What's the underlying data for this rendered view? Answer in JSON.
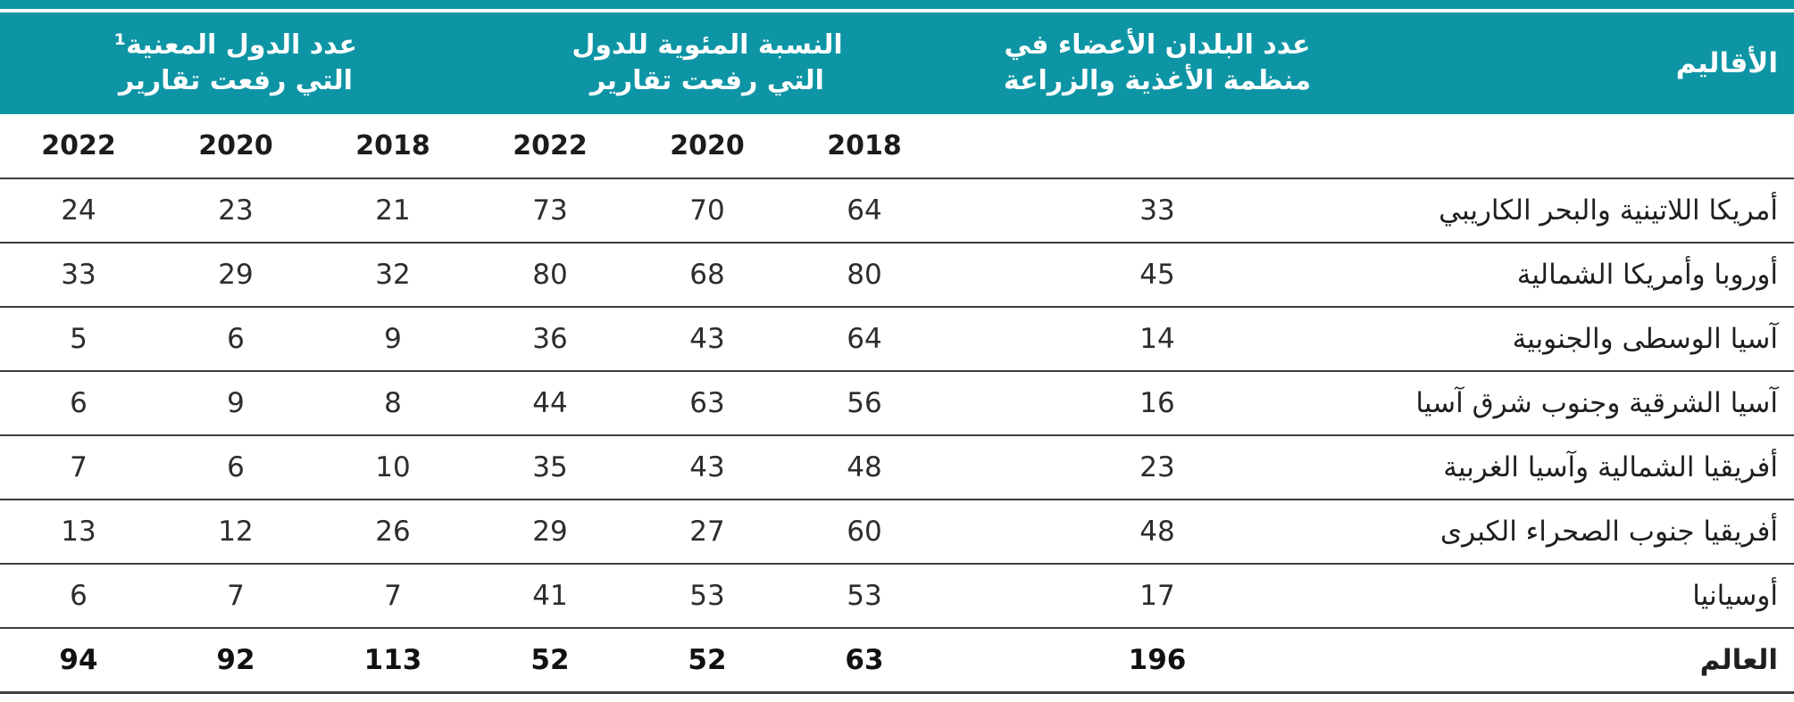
{
  "theme": {
    "teal": "#0e95a5",
    "separator_line": "#3d3d3d",
    "header_text": "#ffffff",
    "body_text": "#2d2d2d"
  },
  "chart_data": {
    "type": "table",
    "direction": "rtl",
    "headers": {
      "regions": "الأقاليم",
      "fao_members_line1": "عدد البلدان الأعضاء في",
      "fao_members_line2": "منظمة الأغذية والزراعة",
      "pct_reporting_line1": "النسبة المئوية للدول",
      "pct_reporting_line2": "التي رفعت تقارير",
      "num_reporting_line1": "عدد الدول المعنية¹",
      "num_reporting_line2": "التي رفعت تقارير"
    },
    "year_row": [
      "2018",
      "2020",
      "2022",
      "2018",
      "2020",
      "2022"
    ],
    "rows": [
      {
        "region": "أمريكا اللاتينية والبحر الكاريبي",
        "fao_members": "33",
        "pct_2018": "64",
        "pct_2020": "70",
        "pct_2022": "73",
        "rep_2018": "21",
        "rep_2020": "23",
        "rep_2022": "24"
      },
      {
        "region": "أوروبا وأمريكا الشمالية",
        "fao_members": "45",
        "pct_2018": "80",
        "pct_2020": "68",
        "pct_2022": "80",
        "rep_2018": "32",
        "rep_2020": "29",
        "rep_2022": "33"
      },
      {
        "region": "آسيا الوسطى والجنوبية",
        "fao_members": "14",
        "pct_2018": "64",
        "pct_2020": "43",
        "pct_2022": "36",
        "rep_2018": "9",
        "rep_2020": "6",
        "rep_2022": "5"
      },
      {
        "region": "آسيا الشرقية وجنوب شرق آسيا",
        "fao_members": "16",
        "pct_2018": "56",
        "pct_2020": "63",
        "pct_2022": "44",
        "rep_2018": "8",
        "rep_2020": "9",
        "rep_2022": "6"
      },
      {
        "region": "أفريقيا الشمالية وآسيا الغربية",
        "fao_members": "23",
        "pct_2018": "48",
        "pct_2020": "43",
        "pct_2022": "35",
        "rep_2018": "10",
        "rep_2020": "6",
        "rep_2022": "7"
      },
      {
        "region": "أفريقيا جنوب الصحراء الكبرى",
        "fao_members": "48",
        "pct_2018": "60",
        "pct_2020": "27",
        "pct_2022": "29",
        "rep_2018": "26",
        "rep_2020": "12",
        "rep_2022": "13"
      },
      {
        "region": "أوسيانيا",
        "fao_members": "17",
        "pct_2018": "53",
        "pct_2020": "53",
        "pct_2022": "41",
        "rep_2018": "7",
        "rep_2020": "7",
        "rep_2022": "6"
      },
      {
        "region": "العالم",
        "fao_members": "196",
        "pct_2018": "63",
        "pct_2020": "52",
        "pct_2022": "52",
        "rep_2018": "113",
        "rep_2020": "92",
        "rep_2022": "94",
        "is_total": true
      }
    ]
  }
}
